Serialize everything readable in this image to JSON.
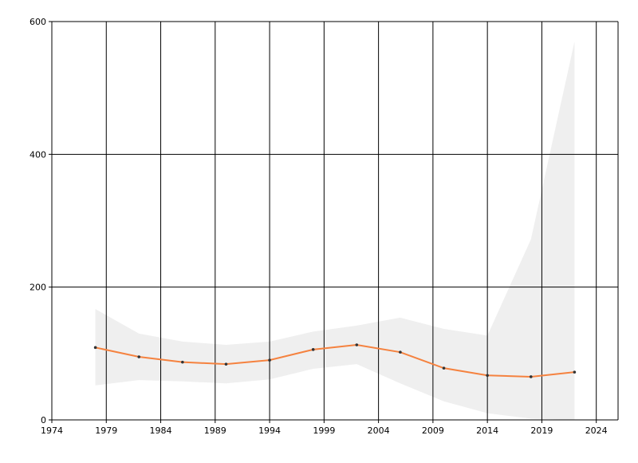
{
  "chart_data": {
    "type": "line",
    "x": [
      1978,
      1982,
      1986,
      1990,
      1994,
      1998,
      2002,
      2006,
      2010,
      2014,
      2018,
      2022
    ],
    "series": [
      {
        "color": "#f5823f",
        "values": [
          109,
          95,
          87,
          84,
          90,
          106,
          113,
          102,
          78,
          67,
          65,
          72
        ]
      }
    ],
    "band": {
      "color": "#efefef",
      "upper": [
        167,
        130,
        118,
        113,
        118,
        133,
        142,
        154,
        137,
        127,
        272,
        570
      ],
      "lower": [
        52,
        60,
        58,
        55,
        61,
        77,
        84,
        55,
        28,
        10,
        2,
        0
      ]
    },
    "xlim": [
      1974,
      2026
    ],
    "xticks": [
      1974,
      1979,
      1984,
      1989,
      1994,
      1999,
      2004,
      2009,
      2014,
      2019,
      2024
    ],
    "ylim": [
      0,
      600
    ],
    "yticks": [
      0,
      200,
      400,
      600
    ],
    "grid": true
  }
}
